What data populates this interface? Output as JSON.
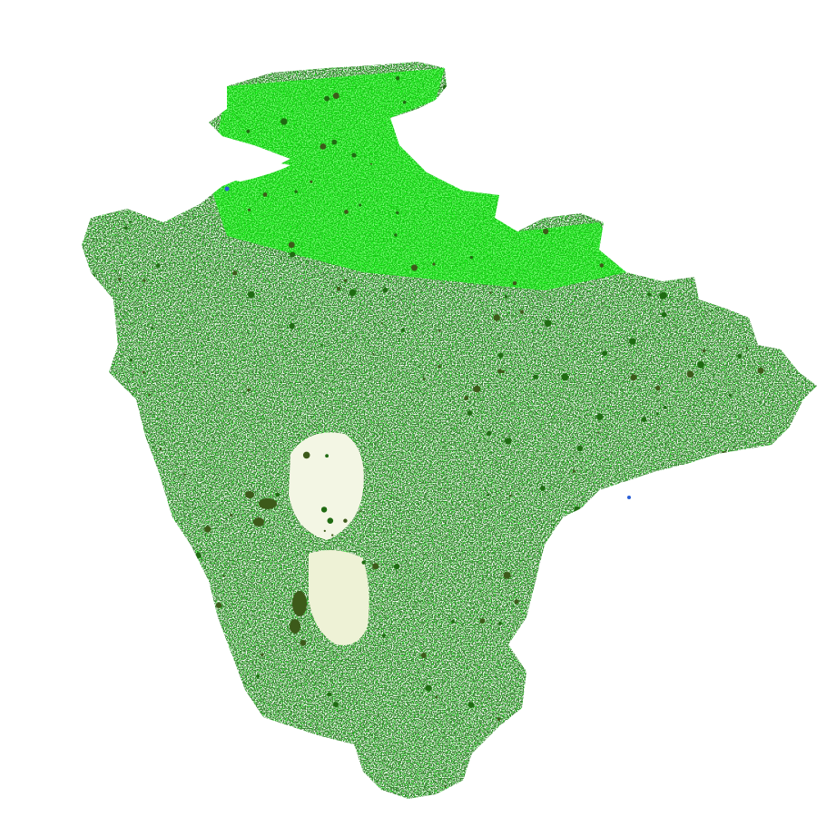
{
  "map": {
    "background_color": "#ffffff",
    "land_cover_palette": {
      "grassland_bright": "#00ff00",
      "grassland_mid": "#22e022",
      "woodland_dark": "#1f6b12",
      "woodland_olive": "#3d5a1a",
      "moorland_pale": "#f3f6e4",
      "moorland_cream": "#eef2d6",
      "unclassified": "#ffffff",
      "water_blue": "#2a5fd6"
    },
    "features": [
      {
        "name": "county-landmass",
        "type": "land-cover-raster"
      },
      {
        "name": "estuary-north",
        "type": "water-gap"
      },
      {
        "name": "moorland-south",
        "type": "pale-upland"
      },
      {
        "name": "moorland-north",
        "type": "pale-upland"
      }
    ]
  }
}
